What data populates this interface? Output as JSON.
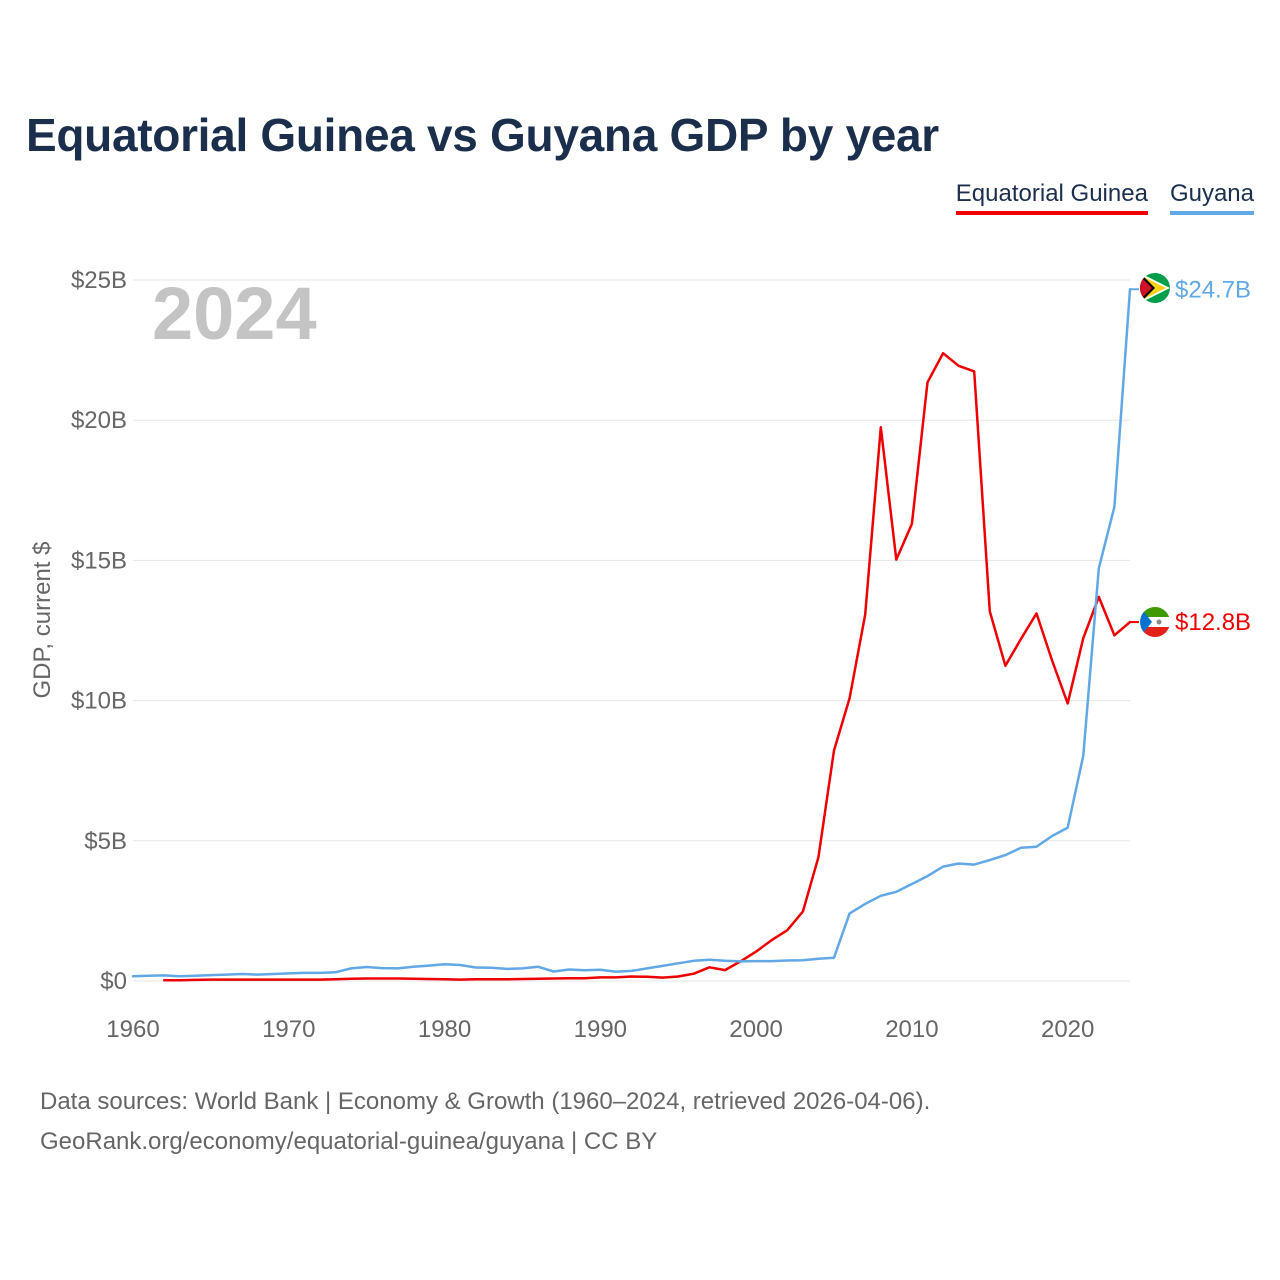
{
  "title": "Equatorial Guinea vs Guyana GDP by year",
  "legend": [
    {
      "label": "Equatorial Guinea",
      "color": "#ee0000"
    },
    {
      "label": "Guyana",
      "color": "#62a8e5"
    }
  ],
  "year_label": "2024",
  "footer": {
    "line1": "Data sources: World Bank | Economy & Growth (1960–2024, retrieved 2026-04-06).",
    "line2": "GeoRank.org/economy/equatorial-guinea/guyana | CC BY"
  },
  "chart_data": {
    "type": "line",
    "title": "Equatorial Guinea vs Guyana GDP by year",
    "xlabel": "",
    "ylabel": "GDP, current $",
    "xlim": [
      1960,
      2024
    ],
    "ylim": [
      0,
      25
    ],
    "y_unit": "billion USD",
    "x_ticks": [
      1960,
      1970,
      1980,
      1990,
      2000,
      2010,
      2020
    ],
    "y_ticks": [
      {
        "value": 0,
        "label": "$0"
      },
      {
        "value": 5,
        "label": "$5B"
      },
      {
        "value": 10,
        "label": "$10B"
      },
      {
        "value": 15,
        "label": "$15B"
      },
      {
        "value": 20,
        "label": "$20B"
      },
      {
        "value": 25,
        "label": "$25B"
      }
    ],
    "grid": true,
    "series": [
      {
        "name": "Equatorial Guinea",
        "color": "#ee0000",
        "end_label": "$12.8B",
        "flag_icon": "equatorial-guinea-flag-icon",
        "x": [
          1962,
          1963,
          1964,
          1965,
          1966,
          1967,
          1968,
          1969,
          1970,
          1971,
          1972,
          1973,
          1974,
          1975,
          1976,
          1977,
          1978,
          1979,
          1980,
          1981,
          1982,
          1983,
          1984,
          1985,
          1986,
          1987,
          1988,
          1989,
          1990,
          1991,
          1992,
          1993,
          1994,
          1995,
          1996,
          1997,
          1998,
          1999,
          2000,
          2001,
          2002,
          2003,
          2004,
          2005,
          2006,
          2007,
          2008,
          2009,
          2010,
          2011,
          2012,
          2013,
          2014,
          2015,
          2016,
          2017,
          2018,
          2019,
          2020,
          2021,
          2022,
          2023,
          2024
        ],
        "values": [
          0.03,
          0.03,
          0.04,
          0.05,
          0.05,
          0.05,
          0.05,
          0.05,
          0.05,
          0.05,
          0.05,
          0.06,
          0.08,
          0.09,
          0.09,
          0.09,
          0.08,
          0.07,
          0.06,
          0.05,
          0.06,
          0.06,
          0.06,
          0.07,
          0.08,
          0.09,
          0.1,
          0.1,
          0.13,
          0.13,
          0.16,
          0.15,
          0.12,
          0.16,
          0.26,
          0.49,
          0.39,
          0.7,
          1.05,
          1.46,
          1.81,
          2.48,
          4.41,
          8.22,
          10.09,
          13.07,
          19.75,
          15.03,
          16.3,
          21.35,
          22.39,
          21.94,
          21.74,
          13.18,
          11.24,
          12.2,
          13.11,
          11.43,
          9.9,
          12.23,
          13.7,
          12.33,
          12.8
        ]
      },
      {
        "name": "Guyana",
        "color": "#62a8e5",
        "end_label": "$24.7B",
        "flag_icon": "guyana-flag-icon",
        "x": [
          1960,
          1961,
          1962,
          1963,
          1964,
          1965,
          1966,
          1967,
          1968,
          1969,
          1970,
          1971,
          1972,
          1973,
          1974,
          1975,
          1976,
          1977,
          1978,
          1979,
          1980,
          1981,
          1982,
          1983,
          1984,
          1985,
          1986,
          1987,
          1988,
          1989,
          1990,
          1991,
          1992,
          1993,
          1994,
          1995,
          1996,
          1997,
          1998,
          1999,
          2000,
          2001,
          2002,
          2003,
          2004,
          2005,
          2006,
          2007,
          2008,
          2009,
          2010,
          2011,
          2012,
          2013,
          2014,
          2015,
          2016,
          2017,
          2018,
          2019,
          2020,
          2021,
          2022,
          2023,
          2024
        ],
        "values": [
          0.17,
          0.19,
          0.2,
          0.17,
          0.19,
          0.21,
          0.23,
          0.25,
          0.23,
          0.25,
          0.27,
          0.29,
          0.29,
          0.31,
          0.45,
          0.5,
          0.46,
          0.45,
          0.51,
          0.55,
          0.6,
          0.57,
          0.48,
          0.47,
          0.43,
          0.45,
          0.51,
          0.34,
          0.41,
          0.38,
          0.4,
          0.33,
          0.36,
          0.45,
          0.54,
          0.63,
          0.72,
          0.76,
          0.72,
          0.7,
          0.71,
          0.71,
          0.73,
          0.74,
          0.79,
          0.83,
          2.41,
          2.75,
          3.04,
          3.18,
          3.46,
          3.74,
          4.08,
          4.19,
          4.15,
          4.31,
          4.49,
          4.75,
          4.79,
          5.17,
          5.47,
          8.04,
          14.72,
          16.91,
          24.67
        ]
      }
    ]
  }
}
